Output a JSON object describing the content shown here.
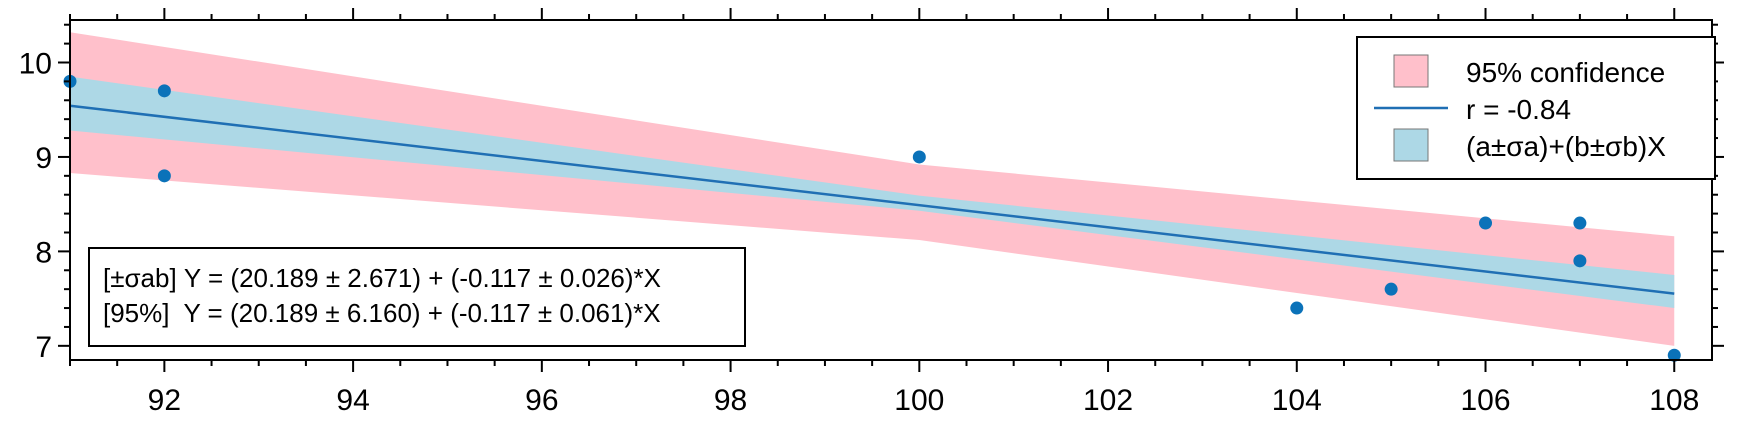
{
  "colors": {
    "confidence_band": "#ffc0cb",
    "sigma_band": "#add8e6",
    "fit_line": "#1f6fb4",
    "points": "#0b72b9",
    "axis": "#000000"
  },
  "legend": {
    "placement": "top-right",
    "entries": [
      {
        "label": "95% confidence",
        "kind": "patch",
        "color": "#ffc0cb"
      },
      {
        "label": "r = -0.84",
        "kind": "line",
        "color": "#1f6fb4"
      },
      {
        "label": "(a±σa)+(b±σb)X",
        "kind": "patch",
        "color": "#add8e6"
      }
    ]
  },
  "equations": {
    "placement": "bottom-left",
    "lines": [
      "[±σab] Y = (20.189 ± 2.671) + (-0.117 ± 0.026)*X",
      "[95%]  Y = (20.189 ± 6.160) + (-0.117 ± 0.061)*X"
    ]
  },
  "chart_data": {
    "type": "scatter",
    "title": "",
    "xlabel": "",
    "ylabel": "",
    "xlim": [
      91,
      108.4
    ],
    "ylim": [
      6.85,
      10.45
    ],
    "x_ticks": [
      92,
      94,
      96,
      98,
      100,
      102,
      104,
      106,
      108
    ],
    "y_ticks": [
      7,
      8,
      9,
      10
    ],
    "grid": false,
    "points": [
      {
        "x": 91,
        "y": 9.8
      },
      {
        "x": 92,
        "y": 9.7
      },
      {
        "x": 92,
        "y": 8.8
      },
      {
        "x": 100,
        "y": 9.0
      },
      {
        "x": 104,
        "y": 7.4
      },
      {
        "x": 105,
        "y": 7.6
      },
      {
        "x": 106,
        "y": 8.3
      },
      {
        "x": 107,
        "y": 8.3
      },
      {
        "x": 107,
        "y": 7.9
      },
      {
        "x": 108,
        "y": 6.9
      }
    ],
    "fit": {
      "intercept": 20.189,
      "slope": -0.117,
      "r": -0.84,
      "x_range": [
        91,
        108
      ]
    },
    "bands": {
      "sigma": {
        "x": [
          91,
          100,
          108
        ],
        "lower": [
          9.28,
          8.43,
          7.4
        ],
        "upper": [
          9.85,
          8.59,
          7.75
        ]
      },
      "confidence_95": {
        "x": [
          91,
          100,
          108
        ],
        "lower": [
          8.83,
          8.12,
          7.0
        ],
        "upper": [
          10.32,
          8.92,
          8.16
        ]
      }
    }
  }
}
